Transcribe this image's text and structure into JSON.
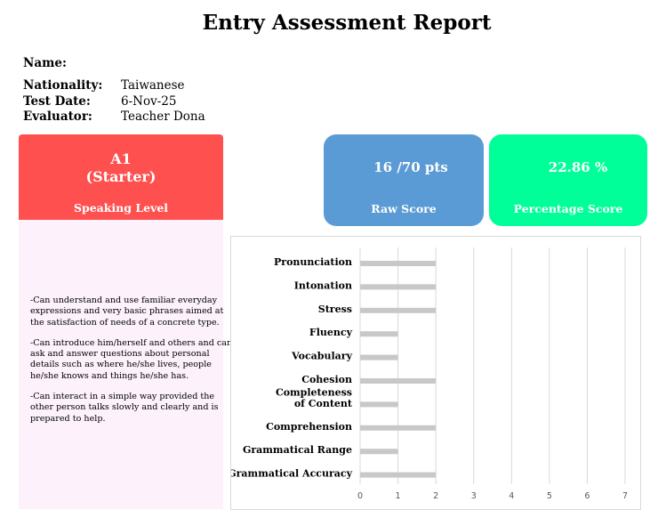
{
  "report": {
    "title": "Entry Assessment Report"
  },
  "student": {
    "name_label": "Name:",
    "name_value": "",
    "nationality_label": "Nationality:",
    "nationality_value": "Taiwanese",
    "test_date_label": "Test Date:",
    "test_date_value": "6-Nov-25",
    "evaluator_label": "Evaluator:",
    "evaluator_value": "Teacher Dona"
  },
  "level": {
    "code": "A1",
    "name": "(Starter)",
    "caption": "Speaking Level",
    "color": "#ff5050"
  },
  "raw_score": {
    "display": "16  /70 pts",
    "caption": "Raw Score",
    "color": "#5b9bd5"
  },
  "percentage": {
    "display": "22.86  %",
    "caption": "Percentage Score",
    "color": "#00ff99"
  },
  "descriptors": [
    "-Can understand and use familiar everyday expressions and very basic phrases aimed at the satisfaction of needs of a concrete type.",
    "-Can introduce him/herself and others and can ask and answer questions about personal details such as where he/she lives, people he/she knows and things he/she has.",
    "-Can interact in a simple way provided the other person talks slowly and clearly and is prepared to help."
  ],
  "chart_data": {
    "type": "bar",
    "orientation": "horizontal",
    "categories": [
      "Pronunciation",
      "Intonation",
      "Stress",
      "Fluency",
      "Vocabulary",
      "Cohesion",
      "Completeness of Content",
      "Comprehension",
      "Grammatical Range",
      "Grammatical Accuracy"
    ],
    "category_lines": [
      [
        "Pronunciation"
      ],
      [
        "Intonation"
      ],
      [
        "Stress"
      ],
      [
        "Fluency"
      ],
      [
        "Vocabulary"
      ],
      [
        "Cohesion"
      ],
      [
        "Completeness",
        "of Content"
      ],
      [
        "Comprehension"
      ],
      [
        "Grammatical Range"
      ],
      [
        "Grammatical Accuracy"
      ]
    ],
    "values": [
      2,
      2,
      2,
      1,
      1,
      2,
      1,
      2,
      1,
      2
    ],
    "xlim": [
      0,
      7
    ],
    "xticks": [
      0,
      1,
      2,
      3,
      4,
      5,
      6,
      7
    ],
    "grid": true,
    "bar_color": "#c8c8c8"
  }
}
